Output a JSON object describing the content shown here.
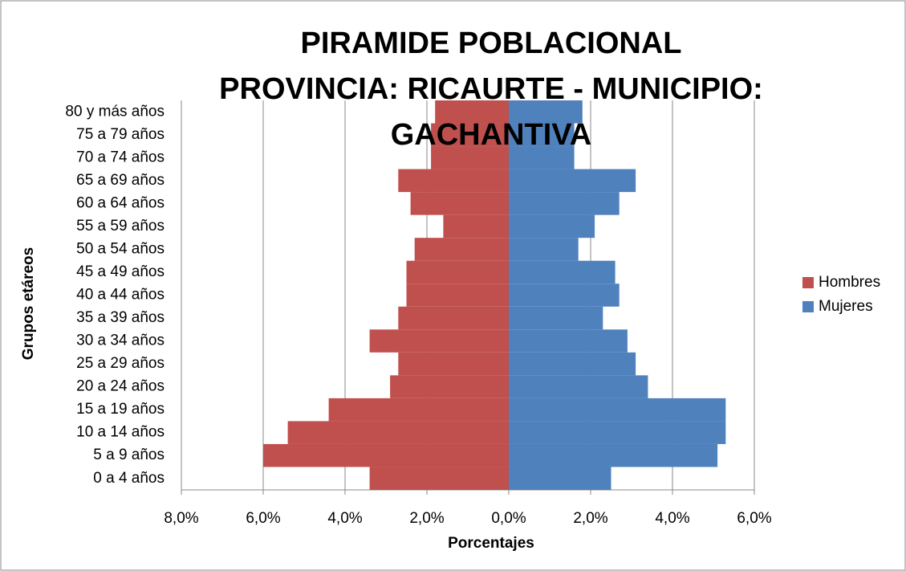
{
  "chart_data": {
    "type": "pyramid",
    "title": [
      "PIRAMIDE POBLACIONAL",
      "PROVINCIA: RICAURTE - MUNICIPIO:",
      "GACHANTIVA"
    ],
    "x_label": "Porcentajes",
    "y_label": "Grupos etáreos",
    "categories": [
      "0 a 4 años",
      "5 a 9 años",
      "10 a 14 años",
      "15 a 19 años",
      "20 a 24 años",
      "25 a 29 años",
      "30 a 34 años",
      "35 a 39 años",
      "40 a 44 años",
      "45 a 49 años",
      "50 a 54 años",
      "55 a 59 años",
      "60 a 64 años",
      "65 a 69 años",
      "70 a 74 años",
      "75 a 79 años",
      "80 y más años"
    ],
    "series": [
      {
        "name": "Hombres",
        "color": "#c0504d",
        "values": [
          -3.4,
          -6.0,
          -5.4,
          -4.4,
          -2.9,
          -2.7,
          -3.4,
          -2.7,
          -2.5,
          -2.5,
          -2.3,
          -1.6,
          -2.4,
          -2.7,
          -1.9,
          -1.9,
          -1.8
        ]
      },
      {
        "name": "Mujeres",
        "color": "#4f81bd",
        "values": [
          2.5,
          5.1,
          5.3,
          5.3,
          3.4,
          3.1,
          2.9,
          2.3,
          2.7,
          2.6,
          1.7,
          2.1,
          2.7,
          3.1,
          1.6,
          1.6,
          1.8
        ]
      }
    ],
    "xlim": [
      -8,
      6
    ],
    "xticks": [
      {
        "value": -8,
        "label": "8,0%"
      },
      {
        "value": -6,
        "label": "6,0%"
      },
      {
        "value": -4,
        "label": "4,0%"
      },
      {
        "value": -2,
        "label": "2,0%"
      },
      {
        "value": 0,
        "label": "0,0%"
      },
      {
        "value": 2,
        "label": "2,0%"
      },
      {
        "value": 4,
        "label": "4,0%"
      },
      {
        "value": 6,
        "label": "6,0%"
      }
    ],
    "grid": true,
    "legend": "right"
  }
}
